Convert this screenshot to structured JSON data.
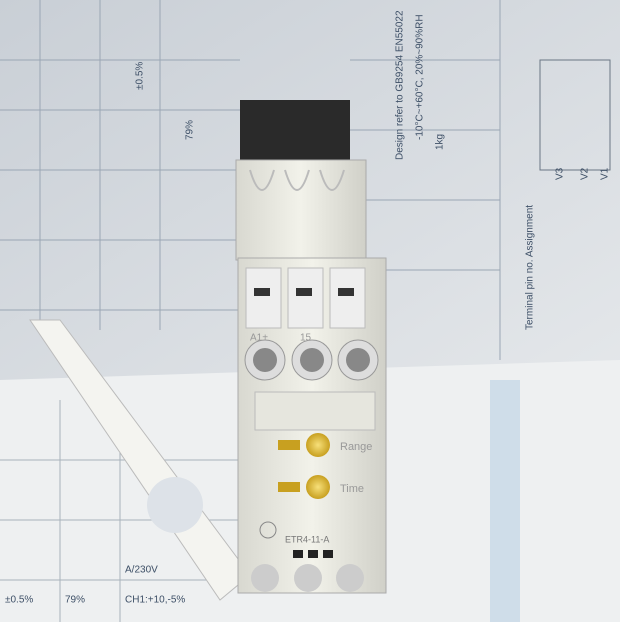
{
  "device": {
    "terminal_top_left": "A1+",
    "terminal_top_right": "15",
    "knob_range": "Range",
    "knob_time": "Time",
    "model": "ETR4-11-A"
  },
  "background_text": {
    "spec_1": "CH1:+10,-5%",
    "spec_2": "79%",
    "spec_3": "±0.5%",
    "spec_4": "A/230V",
    "spec_5": "1kg",
    "spec_6": "-10°C~+60°C, 20%~90%RH",
    "spec_7": "Design refer to GB9254 EN55022",
    "spec_8": "Terminal pin no. Assignment",
    "pin_1": "V3",
    "pin_2": "V2",
    "pin_3": "V1"
  }
}
